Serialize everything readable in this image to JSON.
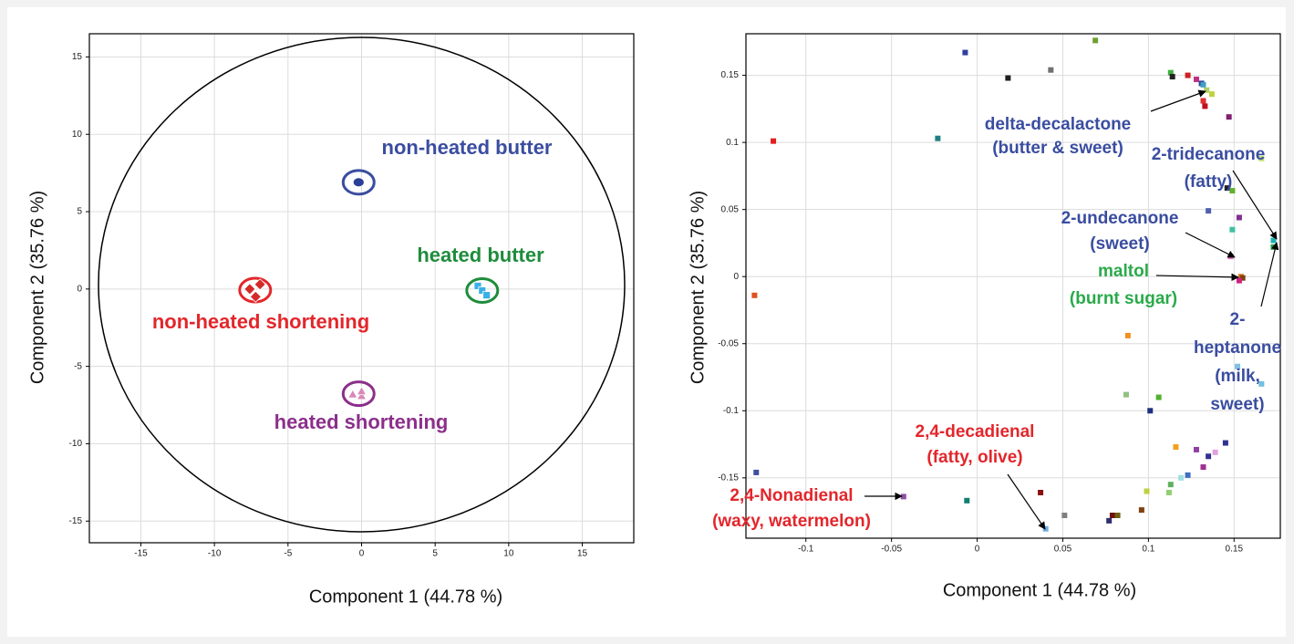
{
  "chart_data": [
    {
      "type": "scatter",
      "x_label": "Component 1 (44.78 %)",
      "y_label": "Component 2 (35.76 %)",
      "xlim": [
        -18.5,
        18.5
      ],
      "ylim": [
        -16.4,
        16.5
      ],
      "xticks": [
        -15,
        -10,
        -5,
        0,
        5,
        10,
        15
      ],
      "yticks": [
        -15,
        -10,
        -5,
        0,
        5,
        10,
        15
      ],
      "grid": true,
      "series": [
        {
          "name": "non-heated butter",
          "color": "#2b3f98",
          "label_color": "#3a4da0",
          "marker": "circle",
          "x": [
            -0.2
          ],
          "values": [
            6.9
          ]
        },
        {
          "name": "heated butter",
          "color": "#3ab0e6",
          "label_color": "#1e8c3c",
          "marker": "square",
          "x": [
            7.9,
            8.2,
            8.5
          ],
          "values": [
            0.2,
            -0.1,
            -0.4
          ]
        },
        {
          "name": "non-heated shortening",
          "color": "#d42a2a",
          "label_color": "#e3262b",
          "marker": "diamond",
          "x": [
            -7.6,
            -6.9,
            -7.2
          ],
          "values": [
            0.0,
            0.3,
            -0.5
          ]
        },
        {
          "name": "heated shortening",
          "color": "#d888b8",
          "label_color": "#8b2f8b",
          "marker": "triangle",
          "x": [
            -0.6,
            0.0,
            0.0
          ],
          "values": [
            -6.8,
            -6.9,
            -6.6
          ]
        }
      ]
    },
    {
      "type": "scatter",
      "x_label": "Component 1 (44.78 %)",
      "y_label": "Component 2 (35.76 %)",
      "xlim": [
        -0.135,
        0.177
      ],
      "ylim": [
        -0.195,
        0.181
      ],
      "xticks": [
        -0.1,
        -0.05,
        0,
        0.05,
        0.1,
        0.15
      ],
      "yticks": [
        -0.15,
        -0.1,
        -0.05,
        0,
        0.05,
        0.1,
        0.15
      ],
      "grid": true,
      "x": [
        -0.119,
        -0.13,
        -0.129,
        -0.043,
        -0.007,
        -0.023,
        -0.006,
        0.018,
        0.043,
        0.069,
        0.037,
        0.04,
        0.051,
        0.077,
        0.079,
        0.082,
        0.096,
        0.099,
        0.101,
        0.087,
        0.106,
        0.088,
        0.113,
        0.114,
        0.123,
        0.128,
        0.131,
        0.132,
        0.134,
        0.137,
        0.132,
        0.133,
        0.147,
        0.166,
        0.146,
        0.149,
        0.153,
        0.135,
        0.149,
        0.148,
        0.173,
        0.173,
        0.154,
        0.155,
        0.153,
        0.152,
        0.166,
        0.145,
        0.116,
        0.128,
        0.135,
        0.139,
        0.132,
        0.123,
        0.119,
        0.113,
        0.112
      ],
      "values": [
        0.101,
        -0.014,
        -0.146,
        -0.164,
        0.167,
        0.103,
        -0.167,
        0.148,
        0.154,
        0.176,
        -0.161,
        -0.188,
        -0.178,
        -0.182,
        -0.178,
        -0.178,
        -0.174,
        -0.16,
        -0.1,
        -0.088,
        -0.09,
        -0.044,
        0.152,
        0.149,
        0.15,
        0.147,
        0.144,
        0.143,
        0.139,
        0.136,
        0.131,
        0.127,
        0.119,
        0.088,
        0.066,
        0.064,
        0.044,
        0.049,
        0.035,
        0.015,
        0.027,
        0.022,
        0.0,
        -0.001,
        -0.003,
        -0.067,
        -0.08,
        -0.124,
        -0.127,
        -0.129,
        -0.134,
        -0.131,
        -0.142,
        -0.148,
        -0.15,
        -0.155,
        -0.161
      ],
      "colors": [
        "#e02020",
        "#e05020",
        "#4050a0",
        "#9050a0",
        "#3040a0",
        "#208080",
        "#108070",
        "#202020",
        "#707070",
        "#70a030",
        "#8b1010",
        "#70b0e0",
        "#808080",
        "#303070",
        "#701010",
        "#706010",
        "#804010",
        "#c0d040",
        "#203080",
        "#90c080",
        "#50b030",
        "#f09020",
        "#40b040",
        "#202020",
        "#d02020",
        "#c03080",
        "#3040a0",
        "#40a0c0",
        "#b0d060",
        "#c0d040",
        "#e03030",
        "#c01020",
        "#802070",
        "#c0e070",
        "#202020",
        "#60b030",
        "#803090",
        "#5060b0",
        "#40c0a0",
        "#e070c0",
        "#20b0b0",
        "#20a040",
        "#d08020",
        "#804010",
        "#d02080",
        "#80c0e0",
        "#70c0e0",
        "#303090",
        "#f0a020",
        "#9040a0",
        "#303090",
        "#e0a0e0",
        "#a03090",
        "#4070c0",
        "#a0e0e0",
        "#60b060",
        "#90d070"
      ],
      "annotations": [
        {
          "lines": [
            "delta-decalactone",
            "(butter & sweet)"
          ],
          "color": "#3a4da0"
        },
        {
          "lines": [
            "2-tridecanone",
            "(fatty)"
          ],
          "color": "#3a4da0"
        },
        {
          "lines": [
            "2-undecanone",
            "(sweet)"
          ],
          "color": "#3a4da0"
        },
        {
          "lines": [
            "maltol",
            "(burnt sugar)"
          ],
          "color": "#2aaa4a"
        },
        {
          "lines": [
            "2-",
            "heptanone",
            "(milk,",
            "sweet)"
          ],
          "color": "#3a4da0"
        },
        {
          "lines": [
            "2,4-decadienal",
            "(fatty, olive)"
          ],
          "color": "#e3262b"
        },
        {
          "lines": [
            "2,4-Nonadienal",
            "(waxy, watermelon)"
          ],
          "color": "#e3262b"
        }
      ]
    }
  ]
}
